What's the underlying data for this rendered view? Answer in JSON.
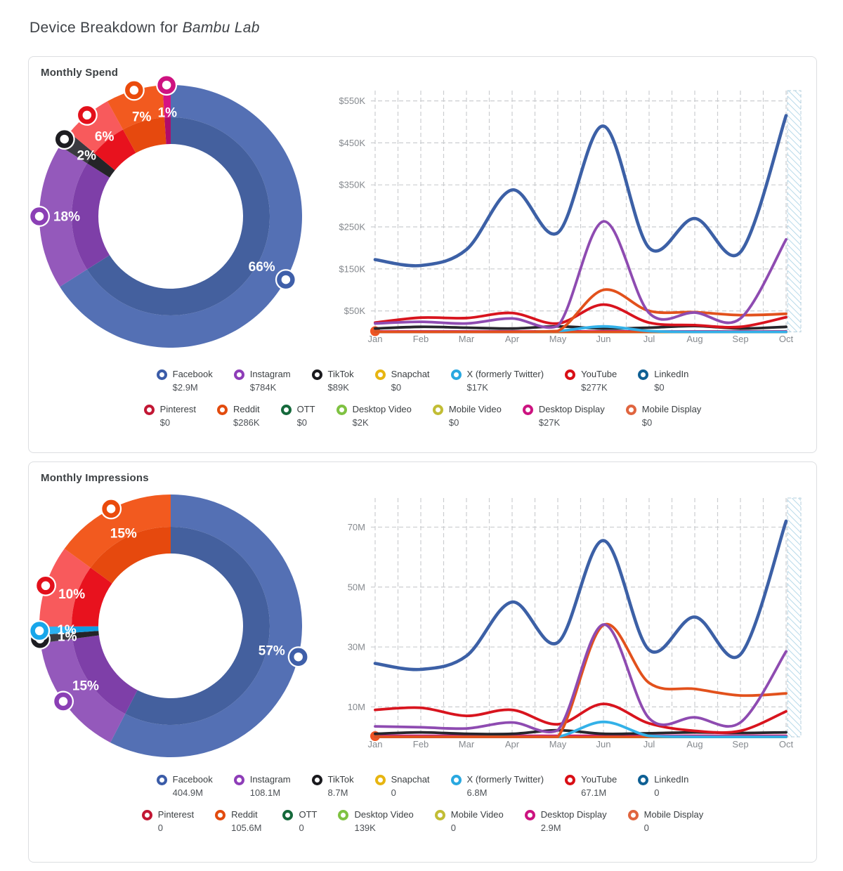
{
  "header": {
    "title_prefix": "Device Breakdown for ",
    "brand": "Bambu Lab"
  },
  "panels": [
    {
      "title": "Monthly Spend"
    },
    {
      "title": "Monthly Impressions"
    }
  ],
  "chart_data": [
    {
      "type": "pie",
      "title": "Monthly Spend share by platform",
      "slices": [
        {
          "label": "Facebook",
          "percent": "66%",
          "value": 66,
          "color_outer": "#5470b4",
          "color_inner": "#44609e",
          "marker": "#3f5fa9"
        },
        {
          "label": "Instagram",
          "percent": "18%",
          "value": 18,
          "color_outer": "#9459bb",
          "color_inner": "#7e3fa8",
          "marker": "#8b3fb5"
        },
        {
          "label": "TikTok",
          "percent": "2%",
          "value": 2,
          "color_outer": "#3a3a40",
          "color_inner": "#242428",
          "marker": "#1d1d21"
        },
        {
          "label": "YouTube",
          "percent": "6%",
          "value": 6,
          "color_outer": "#f85a5c",
          "color_inner": "#e8121e",
          "marker": "#e3101b"
        },
        {
          "label": "Reddit",
          "percent": "7%",
          "value": 7,
          "color_outer": "#f25a1f",
          "color_inner": "#e6490e",
          "marker": "#ea4b0c"
        },
        {
          "label": "Desktop Display",
          "percent": "1%",
          "value": 1,
          "color_outer": "#d61384",
          "color_inner": "#b00c6a",
          "marker": "#ce1280"
        }
      ]
    },
    {
      "type": "line",
      "title": "Monthly Spend by platform",
      "x": [
        "Jan",
        "Feb",
        "Mar",
        "Apr",
        "May",
        "Jun",
        "Jul",
        "Aug",
        "Sep",
        "Oct"
      ],
      "y_unit": "$K",
      "ylim": [
        0,
        575
      ],
      "y_ticks": [
        {
          "label": "$50K",
          "v": 50
        },
        {
          "label": "$150K",
          "v": 150
        },
        {
          "label": "$250K",
          "v": 250
        },
        {
          "label": "$350K",
          "v": 350
        },
        {
          "label": "$450K",
          "v": 450
        },
        {
          "label": "$550K",
          "v": 550
        }
      ],
      "series": [
        {
          "name": "Snapchat",
          "color": "#e7b511",
          "values": [
            0,
            0,
            0,
            0,
            0,
            0,
            0,
            0,
            0,
            0
          ]
        },
        {
          "name": "LinkedIn",
          "color": "#0f6094",
          "values": [
            0,
            0,
            0,
            0,
            0,
            0,
            0,
            0,
            0,
            0
          ]
        },
        {
          "name": "Pinterest",
          "color": "#c21734",
          "values": [
            0,
            0,
            0,
            0,
            0,
            0,
            0,
            0,
            0,
            0
          ]
        },
        {
          "name": "OTT",
          "color": "#15693b",
          "values": [
            0,
            0,
            0,
            0,
            0,
            0,
            0,
            0,
            0,
            0
          ]
        },
        {
          "name": "Mobile Video",
          "color": "#c2bd35",
          "values": [
            0,
            0,
            0,
            0,
            0,
            0,
            0,
            0,
            0,
            0
          ]
        },
        {
          "name": "Desktop Video",
          "color": "#7fc242",
          "values": [
            0.2,
            0.2,
            0.2,
            0.2,
            0.2,
            0.2,
            0.2,
            0.2,
            0.2,
            0.2
          ]
        },
        {
          "name": "Desktop Display",
          "color": "#cc1380",
          "values": [
            1,
            1,
            1,
            1,
            1,
            1,
            1,
            1,
            1,
            1
          ]
        },
        {
          "name": "Mobile Display",
          "color": "#e1511c",
          "values": [
            0,
            0,
            0,
            0,
            0,
            0,
            0,
            0,
            0,
            0
          ],
          "start_dot": true,
          "width": 3.4
        },
        {
          "name": "TikTok",
          "color": "#26262b",
          "values": [
            8,
            12,
            10,
            8,
            13,
            8,
            10,
            14,
            8,
            12
          ]
        },
        {
          "name": "X (formerly Twitter)",
          "color": "#33b1e8",
          "values": [
            0,
            0,
            0,
            0,
            2,
            13,
            2,
            0,
            0,
            0
          ]
        },
        {
          "name": "YouTube",
          "color": "#d8141e",
          "values": [
            22,
            34,
            33,
            45,
            20,
            65,
            22,
            16,
            12,
            35
          ]
        },
        {
          "name": "Reddit",
          "color": "#e2511c",
          "values": [
            0,
            0,
            0,
            0,
            2,
            100,
            50,
            47,
            40,
            43
          ]
        },
        {
          "name": "Instagram",
          "color": "#8e4bb1",
          "values": [
            20,
            24,
            20,
            32,
            14,
            263,
            45,
            46,
            32,
            220
          ]
        },
        {
          "name": "Facebook",
          "color": "#3c60a6",
          "values": [
            172,
            158,
            196,
            338,
            236,
            490,
            200,
            270,
            190,
            515
          ],
          "width": 4.6
        }
      ]
    },
    {
      "type": "pie",
      "title": "Monthly Impressions share by platform",
      "slices": [
        {
          "label": "Facebook",
          "percent": "57%",
          "value": 57.6,
          "color_outer": "#5470b4",
          "color_inner": "#44609e",
          "marker": "#3f5fa9"
        },
        {
          "label": "Instagram",
          "percent": "15%",
          "value": 15.3,
          "color_outer": "#9459bb",
          "color_inner": "#7e3fa8",
          "marker": "#8b3fb5"
        },
        {
          "label": "TikTok",
          "percent": "1%",
          "value": 1.0,
          "color_outer": "#3a3a40",
          "color_inner": "#242428",
          "marker": "#1d1d21"
        },
        {
          "label": "X (formerly Twitter)",
          "percent": "1%",
          "value": 1.0,
          "color_outer": "#2bb1f2",
          "color_inner": "#109ce2",
          "marker": "#18a6ea"
        },
        {
          "label": "YouTube",
          "percent": "10%",
          "value": 10.1,
          "color_outer": "#f85a5c",
          "color_inner": "#e8121e",
          "marker": "#e3101b"
        },
        {
          "label": "Reddit",
          "percent": "15%",
          "value": 15.0,
          "color_outer": "#f25a1f",
          "color_inner": "#e6490e",
          "marker": "#ea4b0c"
        }
      ]
    },
    {
      "type": "line",
      "title": "Monthly Impressions by platform",
      "x": [
        "Jan",
        "Feb",
        "Mar",
        "Apr",
        "May",
        "Jun",
        "Jul",
        "Aug",
        "Sep",
        "Oct"
      ],
      "y_unit": "M",
      "ylim": [
        0,
        80
      ],
      "y_ticks": [
        {
          "label": "10M",
          "v": 10
        },
        {
          "label": "30M",
          "v": 30
        },
        {
          "label": "50M",
          "v": 50
        },
        {
          "label": "70M",
          "v": 70
        }
      ],
      "series": [
        {
          "name": "Snapchat",
          "color": "#e7b511",
          "values": [
            0,
            0,
            0,
            0,
            0,
            0,
            0,
            0,
            0,
            0
          ]
        },
        {
          "name": "LinkedIn",
          "color": "#0f6094",
          "values": [
            0,
            0,
            0,
            0,
            0,
            0,
            0,
            0,
            0,
            0
          ]
        },
        {
          "name": "Pinterest",
          "color": "#c21734",
          "values": [
            0,
            0,
            0,
            0,
            0,
            0,
            0,
            0,
            0,
            0
          ]
        },
        {
          "name": "OTT",
          "color": "#15693b",
          "values": [
            0,
            0,
            0,
            0,
            0,
            0,
            0,
            0,
            0,
            0
          ]
        },
        {
          "name": "Mobile Video",
          "color": "#c2bd35",
          "values": [
            0,
            0,
            0,
            0,
            0,
            0,
            0,
            0,
            0,
            0
          ]
        },
        {
          "name": "Desktop Video",
          "color": "#7fc242",
          "values": [
            0,
            0,
            0,
            0,
            0,
            0.05,
            0.05,
            0,
            0,
            0
          ]
        },
        {
          "name": "Desktop Display",
          "color": "#cc1380",
          "values": [
            0.3,
            0.3,
            0.3,
            0.3,
            0.3,
            0.3,
            0.3,
            0.3,
            0.3,
            0.3
          ]
        },
        {
          "name": "Mobile Display",
          "color": "#e1511c",
          "values": [
            0,
            0,
            0,
            0,
            0,
            0,
            0,
            0,
            0,
            0
          ],
          "start_dot": true,
          "width": 3.4
        },
        {
          "name": "TikTok",
          "color": "#26262b",
          "values": [
            1,
            1.5,
            1,
            1,
            2.2,
            1,
            1.2,
            1.5,
            1.3,
            1.5
          ]
        },
        {
          "name": "X (formerly Twitter)",
          "color": "#33b1e8",
          "values": [
            0,
            0,
            0,
            0,
            0,
            5,
            0.3,
            0,
            0,
            0
          ]
        },
        {
          "name": "YouTube",
          "color": "#d8141e",
          "values": [
            9,
            9.7,
            7,
            9,
            4.2,
            11,
            4.5,
            2,
            2,
            8.5
          ]
        },
        {
          "name": "Reddit",
          "color": "#e2511c",
          "values": [
            0,
            0,
            0,
            0,
            0,
            37.3,
            18,
            16,
            13.8,
            14.5
          ]
        },
        {
          "name": "Instagram",
          "color": "#8e4bb1",
          "values": [
            3.5,
            3.2,
            2.8,
            4.8,
            2.2,
            37.5,
            6.2,
            6.5,
            4.8,
            28.5
          ]
        },
        {
          "name": "Facebook",
          "color": "#3c60a6",
          "values": [
            24.5,
            22.5,
            27,
            45,
            31.5,
            65.5,
            29,
            40,
            27.5,
            72
          ],
          "width": 4.6
        }
      ]
    }
  ],
  "legends": [
    {
      "rows": [
        [
          {
            "name": "Facebook",
            "value": "$2.9M",
            "color": "#3b5ca8"
          },
          {
            "name": "Instagram",
            "value": "$784K",
            "color": "#8e3db8"
          },
          {
            "name": "TikTok",
            "value": "$89K",
            "color": "#1a1a1e"
          },
          {
            "name": "Snapchat",
            "value": "$0",
            "color": "#e7b511"
          },
          {
            "name": "X (formerly Twitter)",
            "value": "$17K",
            "color": "#29a8e0"
          },
          {
            "name": "YouTube",
            "value": "$277K",
            "color": "#d90f16"
          },
          {
            "name": "LinkedIn",
            "value": "$0",
            "color": "#0f6094"
          }
        ],
        [
          {
            "name": "Pinterest",
            "value": "$0",
            "color": "#c21734"
          },
          {
            "name": "Reddit",
            "value": "$286K",
            "color": "#e24b0e"
          },
          {
            "name": "OTT",
            "value": "$0",
            "color": "#15693b"
          },
          {
            "name": "Desktop Video",
            "value": "$2K",
            "color": "#7fc242"
          },
          {
            "name": "Mobile Video",
            "value": "$0",
            "color": "#c2bd35"
          },
          {
            "name": "Desktop Display",
            "value": "$27K",
            "color": "#cc1380"
          },
          {
            "name": "Mobile Display",
            "value": "$0",
            "color": "#e0653f"
          }
        ]
      ]
    },
    {
      "rows": [
        [
          {
            "name": "Facebook",
            "value": "404.9M",
            "color": "#3b5ca8"
          },
          {
            "name": "Instagram",
            "value": "108.1M",
            "color": "#8e3db8"
          },
          {
            "name": "TikTok",
            "value": "8.7M",
            "color": "#1a1a1e"
          },
          {
            "name": "Snapchat",
            "value": "0",
            "color": "#e7b511"
          },
          {
            "name": "X (formerly Twitter)",
            "value": "6.8M",
            "color": "#29a8e0"
          },
          {
            "name": "YouTube",
            "value": "67.1M",
            "color": "#d90f16"
          },
          {
            "name": "LinkedIn",
            "value": "0",
            "color": "#0f6094"
          }
        ],
        [
          {
            "name": "Pinterest",
            "value": "0",
            "color": "#c21734"
          },
          {
            "name": "Reddit",
            "value": "105.6M",
            "color": "#e24b0e"
          },
          {
            "name": "OTT",
            "value": "0",
            "color": "#15693b"
          },
          {
            "name": "Desktop Video",
            "value": "139K",
            "color": "#7fc242"
          },
          {
            "name": "Mobile Video",
            "value": "0",
            "color": "#c2bd35"
          },
          {
            "name": "Desktop Display",
            "value": "2.9M",
            "color": "#cc1380"
          },
          {
            "name": "Mobile Display",
            "value": "0",
            "color": "#e0653f"
          }
        ]
      ]
    }
  ]
}
